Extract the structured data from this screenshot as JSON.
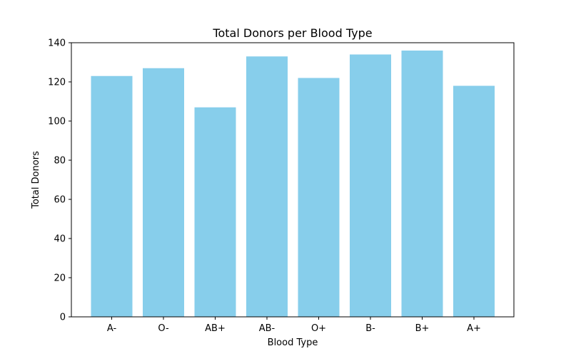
{
  "chart_data": {
    "type": "bar",
    "title": "Total Donors per Blood Type",
    "xlabel": "Blood Type",
    "ylabel": "Total Donors",
    "categories": [
      "A-",
      "O-",
      "AB+",
      "AB-",
      "O+",
      "B-",
      "B+",
      "A+"
    ],
    "values": [
      123,
      127,
      107,
      133,
      122,
      134,
      136,
      118
    ],
    "ylim": [
      0,
      140
    ],
    "yticks": [
      0,
      20,
      40,
      60,
      80,
      100,
      120,
      140
    ],
    "grid": false,
    "legend": "none",
    "bar_color": "#87CEEB"
  }
}
